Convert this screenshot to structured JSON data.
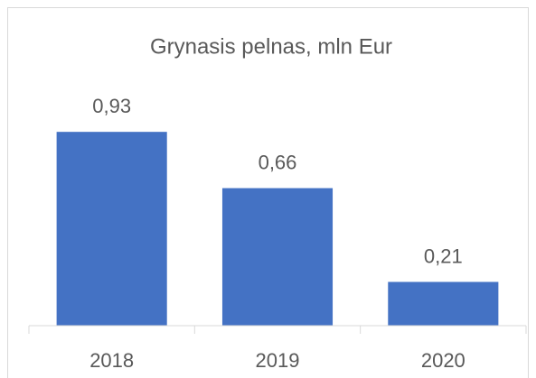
{
  "chart_data": {
    "type": "bar",
    "title": "Grynasis pelnas, mln Eur",
    "categories": [
      "2018",
      "2019",
      "2020"
    ],
    "values": [
      0.93,
      0.66,
      0.21
    ],
    "value_labels": [
      "0,93",
      "0,66",
      "0,21"
    ],
    "color": "#4472c4",
    "ylim": [
      0,
      1
    ]
  }
}
